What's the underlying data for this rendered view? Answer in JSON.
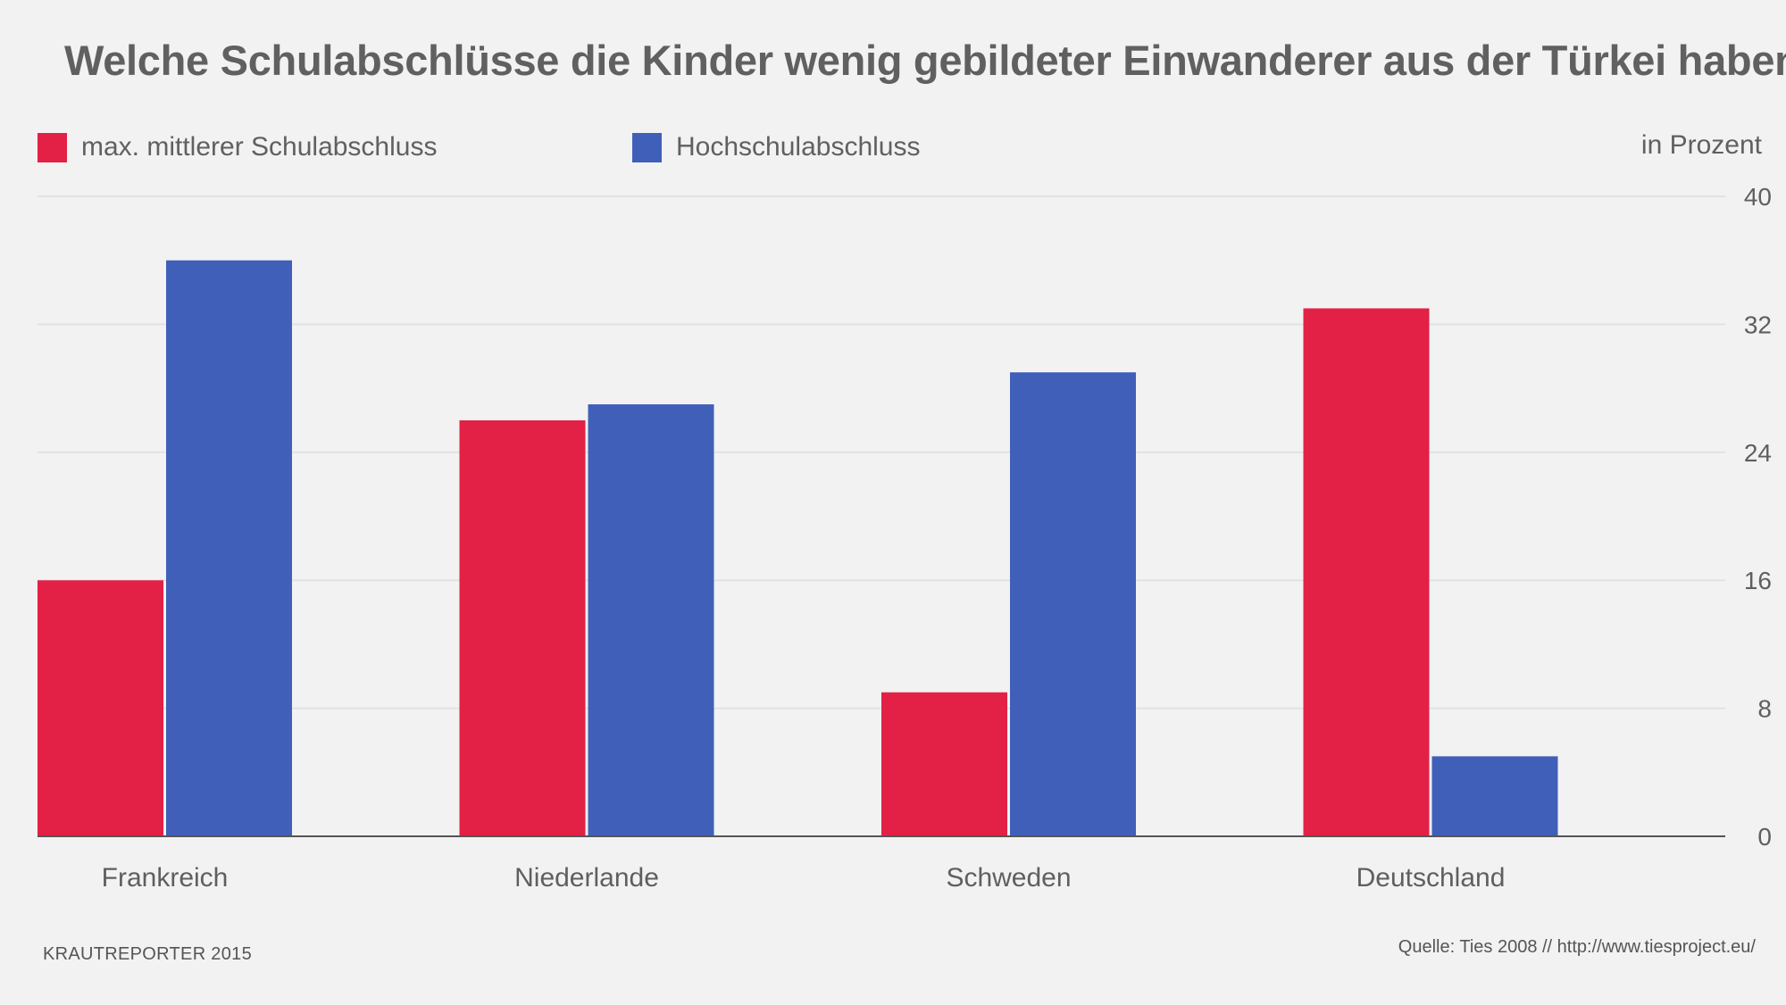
{
  "title": "Welche Schulabschlüsse die Kinder wenig gebildeter Einwanderer aus der Türkei haben",
  "legend": [
    {
      "label": "max. mittlerer Schulabschluss",
      "color": "#e32045"
    },
    {
      "label": "Hochschulabschluss",
      "color": "#405fb8"
    }
  ],
  "unit_label": "in Prozent",
  "footer": {
    "credit": "KRAUTREPORTER 2015",
    "source": "Quelle: Ties 2008 // http://www.tiesproject.eu/"
  },
  "chart_data": {
    "type": "bar",
    "title": "Welche Schulabschlüsse die Kinder wenig gebildeter Einwanderer aus der Türkei haben",
    "categories": [
      "Frankreich",
      "Niederlande",
      "Schweden",
      "Deutschland"
    ],
    "series": [
      {
        "name": "max. mittlerer Schulabschluss",
        "color": "#e32045",
        "values": [
          16,
          26,
          9,
          33
        ]
      },
      {
        "name": "Hochschulabschluss",
        "color": "#405fb8",
        "values": [
          36,
          27,
          29,
          5
        ]
      }
    ],
    "ylabel": "in Prozent",
    "ylim": [
      0,
      40
    ],
    "yticks": [
      0,
      8,
      16,
      24,
      32,
      40
    ],
    "grid": true,
    "y_axis_position": "right"
  }
}
